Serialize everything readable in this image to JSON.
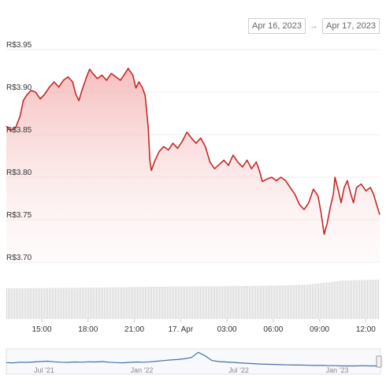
{
  "range_selector": {
    "from": "Apr 16, 2023",
    "arrow": "→",
    "to": "Apr 17, 2023"
  },
  "colors": {
    "price_line": "#c62828",
    "area_fill": "#f8c5c5",
    "volume_bar": "#d9d9d9",
    "navigator_line": "#4a6fa5"
  },
  "chart_data": {
    "type": "line",
    "currency_prefix": "R$",
    "y_ticks": [
      "R$3.95",
      "R$3.90",
      "R$3.85",
      "R$3.80",
      "R$3.75",
      "R$3.70"
    ],
    "ylim": [
      3.7,
      3.95
    ],
    "x_ticks": [
      "15:00",
      "18:00",
      "21:00",
      "17. Apr",
      "03:00",
      "06:00",
      "09:00",
      "12:00"
    ],
    "x_tick_hours": [
      15,
      18,
      21,
      24,
      27,
      30,
      33,
      36
    ],
    "xlim_hours": [
      12.7,
      36.9
    ],
    "series": [
      {
        "values": [
          [
            12.7,
            3.86
          ],
          [
            13.0,
            3.855
          ],
          [
            13.3,
            3.858
          ],
          [
            13.6,
            3.872
          ],
          [
            13.8,
            3.89
          ],
          [
            14.0,
            3.896
          ],
          [
            14.3,
            3.902
          ],
          [
            14.6,
            3.9
          ],
          [
            14.9,
            3.892
          ],
          [
            15.2,
            3.898
          ],
          [
            15.5,
            3.906
          ],
          [
            15.8,
            3.912
          ],
          [
            16.1,
            3.906
          ],
          [
            16.4,
            3.914
          ],
          [
            16.7,
            3.918
          ],
          [
            17.0,
            3.912
          ],
          [
            17.2,
            3.898
          ],
          [
            17.4,
            3.89
          ],
          [
            17.6,
            3.902
          ],
          [
            17.9,
            3.918
          ],
          [
            18.1,
            3.927
          ],
          [
            18.3,
            3.922
          ],
          [
            18.6,
            3.916
          ],
          [
            18.9,
            3.92
          ],
          [
            19.2,
            3.914
          ],
          [
            19.5,
            3.922
          ],
          [
            19.8,
            3.918
          ],
          [
            20.1,
            3.914
          ],
          [
            20.4,
            3.922
          ],
          [
            20.6,
            3.928
          ],
          [
            20.9,
            3.92
          ],
          [
            21.1,
            3.905
          ],
          [
            21.3,
            3.912
          ],
          [
            21.5,
            3.906
          ],
          [
            21.7,
            3.896
          ],
          [
            21.9,
            3.858
          ],
          [
            22.0,
            3.82
          ],
          [
            22.1,
            3.808
          ],
          [
            22.3,
            3.818
          ],
          [
            22.6,
            3.83
          ],
          [
            22.9,
            3.836
          ],
          [
            23.2,
            3.832
          ],
          [
            23.5,
            3.84
          ],
          [
            23.8,
            3.834
          ],
          [
            24.1,
            3.842
          ],
          [
            24.4,
            3.853
          ],
          [
            24.7,
            3.846
          ],
          [
            25.0,
            3.84
          ],
          [
            25.3,
            3.846
          ],
          [
            25.6,
            3.836
          ],
          [
            25.9,
            3.818
          ],
          [
            26.2,
            3.81
          ],
          [
            26.5,
            3.815
          ],
          [
            26.8,
            3.82
          ],
          [
            27.1,
            3.814
          ],
          [
            27.4,
            3.826
          ],
          [
            27.7,
            3.818
          ],
          [
            28.0,
            3.812
          ],
          [
            28.3,
            3.82
          ],
          [
            28.6,
            3.81
          ],
          [
            28.9,
            3.818
          ],
          [
            29.1,
            3.808
          ],
          [
            29.3,
            3.795
          ],
          [
            29.6,
            3.798
          ],
          [
            29.9,
            3.8
          ],
          [
            30.2,
            3.796
          ],
          [
            30.5,
            3.8
          ],
          [
            30.8,
            3.796
          ],
          [
            31.1,
            3.788
          ],
          [
            31.4,
            3.78
          ],
          [
            31.7,
            3.768
          ],
          [
            32.0,
            3.762
          ],
          [
            32.3,
            3.77
          ],
          [
            32.6,
            3.786
          ],
          [
            32.9,
            3.778
          ],
          [
            33.1,
            3.758
          ],
          [
            33.3,
            3.733
          ],
          [
            33.5,
            3.746
          ],
          [
            33.7,
            3.765
          ],
          [
            33.9,
            3.78
          ],
          [
            34.0,
            3.8
          ],
          [
            34.2,
            3.786
          ],
          [
            34.4,
            3.77
          ],
          [
            34.6,
            3.788
          ],
          [
            34.8,
            3.796
          ],
          [
            35.0,
            3.782
          ],
          [
            35.2,
            3.77
          ],
          [
            35.4,
            3.788
          ],
          [
            35.7,
            3.792
          ],
          [
            36.0,
            3.784
          ],
          [
            36.3,
            3.788
          ],
          [
            36.5,
            3.78
          ],
          [
            36.7,
            3.768
          ],
          [
            36.9,
            3.756
          ]
        ]
      }
    ],
    "volume_relative": [
      [
        12.7,
        0.78
      ],
      [
        16.0,
        0.79
      ],
      [
        19.0,
        0.8
      ],
      [
        22.0,
        0.82
      ],
      [
        26.0,
        0.83
      ],
      [
        30.0,
        0.85
      ],
      [
        32.0,
        0.87
      ],
      [
        33.5,
        0.93
      ],
      [
        34.5,
        0.98
      ],
      [
        36.9,
        1.0
      ]
    ],
    "navigator": {
      "x_ticks": [
        "Jul '21",
        "Jan '22",
        "Jul '22",
        "Jan '23"
      ],
      "values": [
        0.45,
        0.44,
        0.47,
        0.46,
        0.48,
        0.5,
        0.52,
        0.49,
        0.47,
        0.46,
        0.48,
        0.47,
        0.49,
        0.48,
        0.5,
        0.47,
        0.45,
        0.44,
        0.46,
        0.48,
        0.47,
        0.49,
        0.52,
        0.55,
        0.58,
        0.6,
        0.64,
        0.7,
        0.95,
        0.78,
        0.55,
        0.5,
        0.48,
        0.46,
        0.44,
        0.42,
        0.4,
        0.38,
        0.37,
        0.36,
        0.35,
        0.34,
        0.33,
        0.33,
        0.32,
        0.31,
        0.31,
        0.3,
        0.3,
        0.29,
        0.29,
        0.29,
        0.3,
        0.29,
        0.29
      ]
    }
  }
}
